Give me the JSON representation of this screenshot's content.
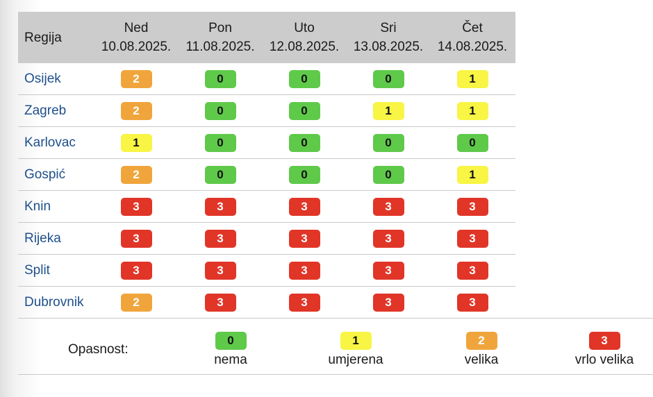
{
  "table": {
    "header_region": "Regija",
    "days": [
      {
        "day": "Ned",
        "date": "10.08.2025."
      },
      {
        "day": "Pon",
        "date": "11.08.2025."
      },
      {
        "day": "Uto",
        "date": "12.08.2025."
      },
      {
        "day": "Sri",
        "date": "13.08.2025."
      },
      {
        "day": "Čet",
        "date": "14.08.2025."
      }
    ],
    "rows": [
      {
        "region": "Osijek",
        "levels": [
          "2",
          "0",
          "0",
          "0",
          "1"
        ]
      },
      {
        "region": "Zagreb",
        "levels": [
          "2",
          "0",
          "0",
          "1",
          "1"
        ]
      },
      {
        "region": "Karlovac",
        "levels": [
          "1",
          "0",
          "0",
          "0",
          "0"
        ]
      },
      {
        "region": "Gospić",
        "levels": [
          "2",
          "0",
          "0",
          "0",
          "1"
        ]
      },
      {
        "region": "Knin",
        "levels": [
          "3",
          "3",
          "3",
          "3",
          "3"
        ]
      },
      {
        "region": "Rijeka",
        "levels": [
          "3",
          "3",
          "3",
          "3",
          "3"
        ]
      },
      {
        "region": "Split",
        "levels": [
          "3",
          "3",
          "3",
          "3",
          "3"
        ]
      },
      {
        "region": "Dubrovnik",
        "levels": [
          "2",
          "3",
          "3",
          "3",
          "3"
        ]
      }
    ]
  },
  "legend": {
    "label": "Opasnost:",
    "items": [
      {
        "level": "0",
        "text": "nema"
      },
      {
        "level": "1",
        "text": "umjerena"
      },
      {
        "level": "2",
        "text": "velika"
      },
      {
        "level": "3",
        "text": "vrlo velika"
      }
    ]
  },
  "colors": {
    "level_0": "#5fc94a",
    "level_1": "#f8f545",
    "level_2": "#f0a53c",
    "level_3": "#e03527",
    "header_bg": "#cccccc",
    "region_link": "#1e4f8c"
  }
}
